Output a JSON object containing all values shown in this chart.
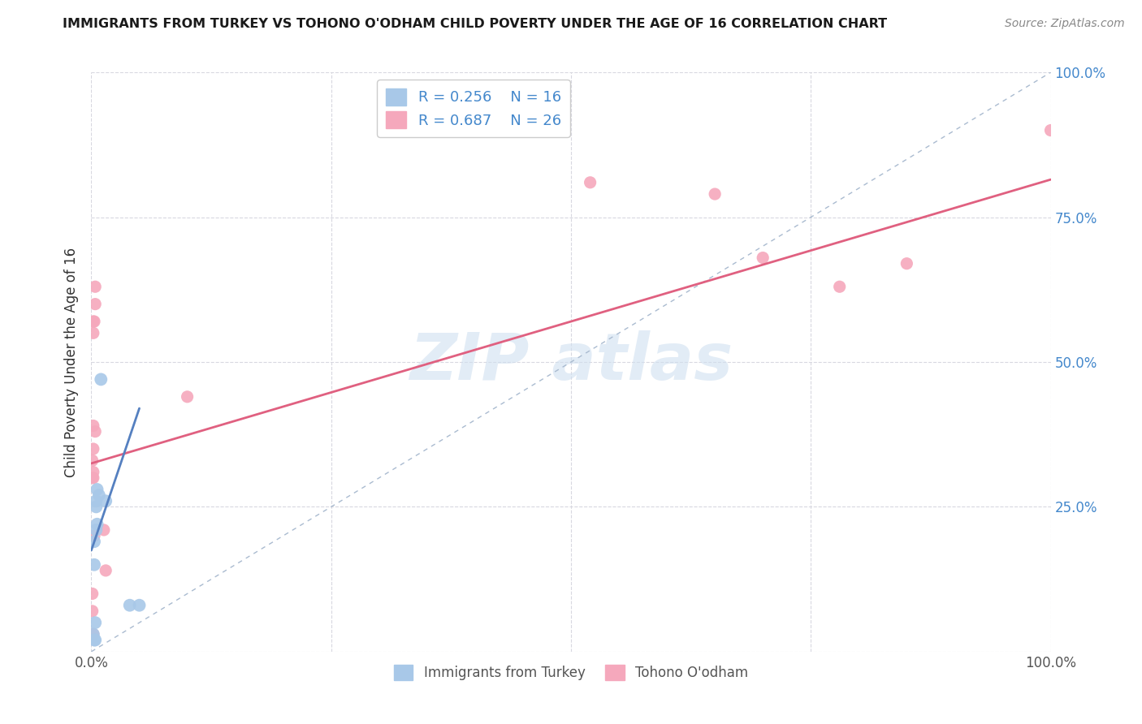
{
  "title": "IMMIGRANTS FROM TURKEY VS TOHONO O'ODHAM CHILD POVERTY UNDER THE AGE OF 16 CORRELATION CHART",
  "source": "Source: ZipAtlas.com",
  "ylabel": "Child Poverty Under the Age of 16",
  "xlim": [
    0,
    1
  ],
  "ylim": [
    0,
    1
  ],
  "legend_labels": [
    "Immigrants from Turkey",
    "Tohono O'odham"
  ],
  "turkey_R": "0.256",
  "turkey_N": "16",
  "tohono_R": "0.687",
  "tohono_N": "26",
  "turkey_color": "#a8c8e8",
  "tohono_color": "#f5a8bc",
  "turkey_line_color": "#5580c0",
  "tohono_line_color": "#e06080",
  "diagonal_color": "#aabbd0",
  "watermark_color": "#d0e0f0",
  "background_color": "#ffffff",
  "grid_color": "#d8d8e0",
  "title_color": "#1a1a1a",
  "source_color": "#888888",
  "axis_label_color": "#333333",
  "tick_color_right": "#4488cc",
  "tick_color_bottom": "#555555",
  "turkey_points": [
    [
      0.002,
      0.03
    ],
    [
      0.003,
      0.02
    ],
    [
      0.003,
      0.15
    ],
    [
      0.003,
      0.19
    ],
    [
      0.004,
      0.02
    ],
    [
      0.004,
      0.05
    ],
    [
      0.005,
      0.21
    ],
    [
      0.005,
      0.25
    ],
    [
      0.005,
      0.26
    ],
    [
      0.006,
      0.22
    ],
    [
      0.006,
      0.28
    ],
    [
      0.008,
      0.27
    ],
    [
      0.01,
      0.47
    ],
    [
      0.015,
      0.26
    ],
    [
      0.04,
      0.08
    ],
    [
      0.05,
      0.08
    ]
  ],
  "tohono_points": [
    [
      0.001,
      0.03
    ],
    [
      0.001,
      0.07
    ],
    [
      0.001,
      0.1
    ],
    [
      0.001,
      0.3
    ],
    [
      0.001,
      0.33
    ],
    [
      0.002,
      0.03
    ],
    [
      0.002,
      0.3
    ],
    [
      0.002,
      0.31
    ],
    [
      0.002,
      0.35
    ],
    [
      0.002,
      0.39
    ],
    [
      0.002,
      0.55
    ],
    [
      0.002,
      0.57
    ],
    [
      0.003,
      0.2
    ],
    [
      0.003,
      0.57
    ],
    [
      0.004,
      0.38
    ],
    [
      0.004,
      0.6
    ],
    [
      0.004,
      0.63
    ],
    [
      0.013,
      0.21
    ],
    [
      0.015,
      0.14
    ],
    [
      0.1,
      0.44
    ],
    [
      0.52,
      0.81
    ],
    [
      0.65,
      0.79
    ],
    [
      0.7,
      0.68
    ],
    [
      0.78,
      0.63
    ],
    [
      0.85,
      0.67
    ],
    [
      1.0,
      0.9
    ]
  ],
  "turkey_line": {
    "x0": 0.0,
    "y0": 0.175,
    "x1": 0.05,
    "y1": 0.42
  },
  "tohono_line": {
    "x0": 0.0,
    "y0": 0.325,
    "x1": 1.0,
    "y1": 0.815
  },
  "scatter_size_turkey": 130,
  "scatter_size_tohono": 120
}
